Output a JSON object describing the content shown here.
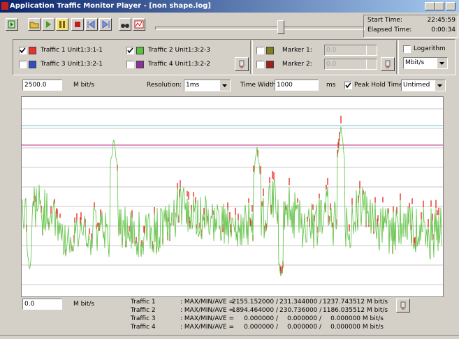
{
  "window": {
    "title": "Application Traffic Monitor Player - [non shape.log]"
  },
  "toolbar": {
    "start_time_label": "Start Time:",
    "start_time": "22:45:59",
    "elapsed_time_label": "Elapsed Time:",
    "elapsed_time": "0:00:34"
  },
  "traffic": [
    {
      "name": "Traffic 1 Unit1:3:1-1",
      "checked": true,
      "color": "#e8302c"
    },
    {
      "name": "Traffic 2 Unit1:3:2-3",
      "checked": true,
      "color": "#5cc040"
    },
    {
      "name": "Traffic 3 Unit1:3:2-1",
      "checked": false,
      "color": "#3050c0"
    },
    {
      "name": "Traffic 4 Unit1:3:2-2",
      "checked": false,
      "color": "#9030a0"
    }
  ],
  "markers": [
    {
      "label": "Marker 1:",
      "value": "0.0",
      "checked": false,
      "color": "#808020"
    },
    {
      "label": "Marker 2:",
      "value": "0.0",
      "checked": false,
      "color": "#a02018"
    }
  ],
  "logarithm": {
    "label": "Logarithm",
    "checked": false
  },
  "unit_select": "Mbit/s",
  "controls": {
    "max_value": "2500.0",
    "max_unit": "M bit/s",
    "resolution_label": "Resolution:",
    "resolution": "1ms",
    "time_width_label": "Time Width:",
    "time_width": "1000",
    "time_width_unit": "ms",
    "peak_hold_label": "Peak Hold Time:",
    "peak_hold_checked": true,
    "peak_hold": "Untimed"
  },
  "min": {
    "value": "0.0",
    "unit": "M bit/s"
  },
  "stats": [
    {
      "name": "Traffic 1",
      "label": ": MAX/MIN/AVE  =",
      "max": "2155.152000 /",
      "min": "231.344000 /",
      "ave": "1237.743512 M bit/s"
    },
    {
      "name": "Traffic 2",
      "label": ": MAX/MIN/AVE  =",
      "max": "1894.464000 /",
      "min": "230.736000 /",
      "ave": "1186.035512 M bit/s"
    },
    {
      "name": "Traffic 3",
      "label": ": MAX/MIN/AVE  =",
      "max": "0.000000 /",
      "min": "0.000000 /",
      "ave": "0.000000 M bit/s"
    },
    {
      "name": "Traffic 4",
      "label": ": MAX/MIN/AVE  =",
      "max": "0.000000 /",
      "min": "0.000000 /",
      "ave": "0.000000 M bit/s"
    }
  ]
}
